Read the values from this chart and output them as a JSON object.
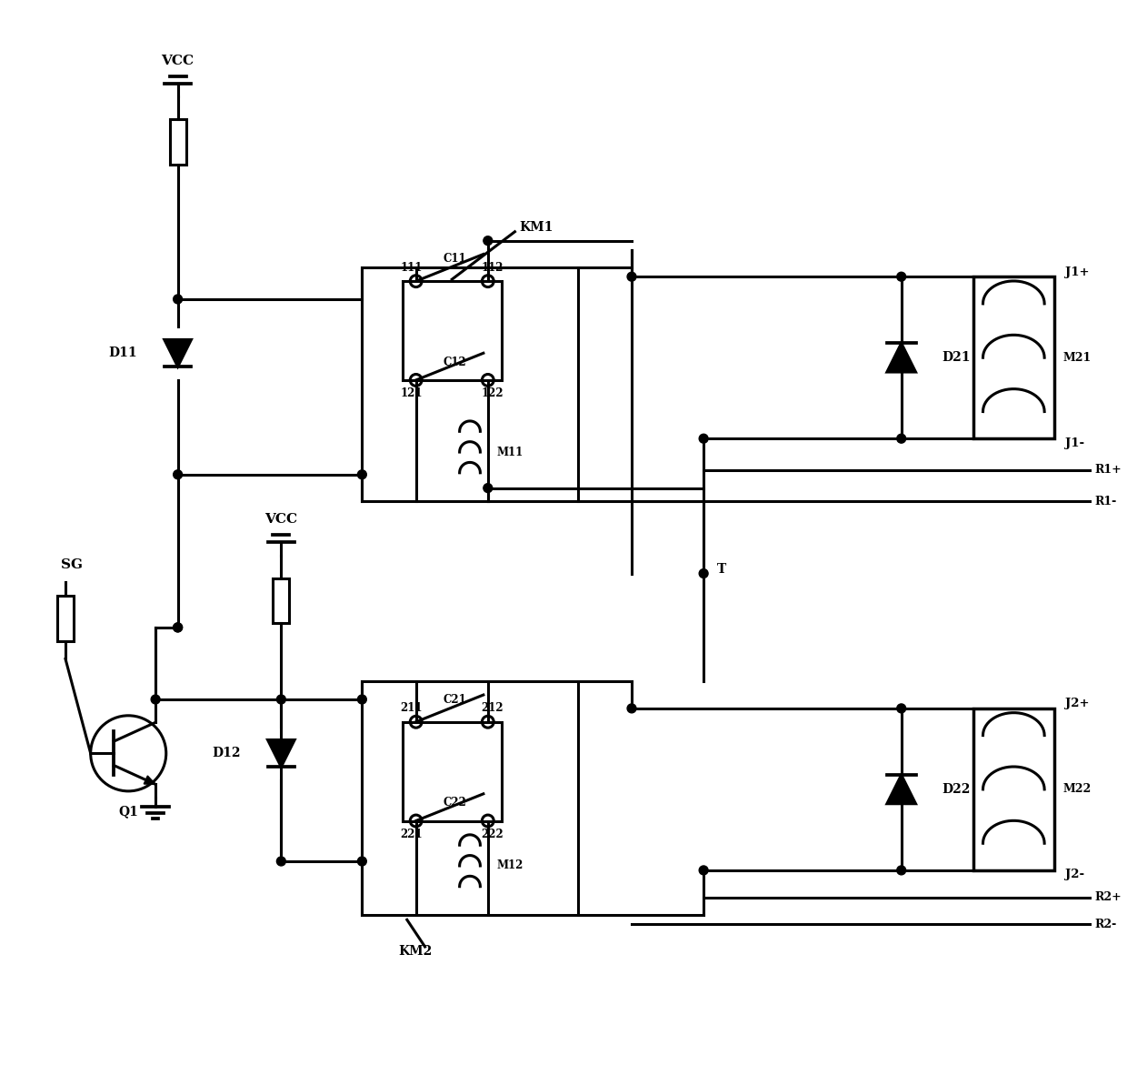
{
  "background": "#ffffff",
  "line_color": "#000000",
  "line_width": 2.2,
  "figsize": [
    12.4,
    11.82
  ],
  "dpi": 100,
  "xlim": [
    0,
    124
  ],
  "ylim": [
    0,
    118
  ]
}
